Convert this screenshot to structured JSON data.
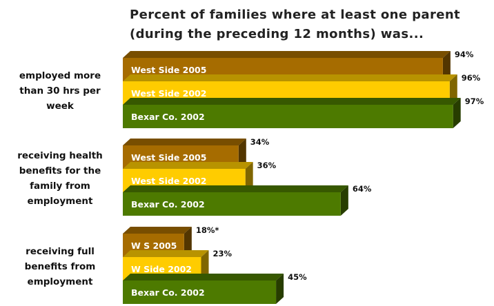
{
  "chart_data": {
    "type": "bar",
    "orientation": "horizontal",
    "style": "3d",
    "title_lines": [
      "Percent of families where at least one parent",
      "(during the preceding 12 months) was..."
    ],
    "xlim": [
      0,
      100
    ],
    "grid": false,
    "groups": [
      {
        "label_lines": [
          "employed more",
          "than 30 hrs per",
          "week"
        ],
        "bars": [
          {
            "label": "West Side 2005",
            "value": 94,
            "value_label": "94%",
            "color": "#A66C00"
          },
          {
            "label": "West Side 2002",
            "value": 96,
            "value_label": "96%",
            "color": "#FFCC00"
          },
          {
            "label": "Bexar Co. 2002",
            "value": 97,
            "value_label": "97%",
            "color": "#4D7A00"
          }
        ]
      },
      {
        "label_lines": [
          "receiving health",
          "benefits for the",
          "family from",
          "employment"
        ],
        "bars": [
          {
            "label": "West Side 2005",
            "value": 34,
            "value_label": "34%",
            "color": "#A66C00"
          },
          {
            "label": "West Side 2002",
            "value": 36,
            "value_label": "36%",
            "color": "#FFCC00"
          },
          {
            "label": "Bexar Co. 2002",
            "value": 64,
            "value_label": "64%",
            "color": "#4D7A00"
          }
        ]
      },
      {
        "label_lines": [
          "receiving full",
          "benefits from",
          "employment"
        ],
        "bars": [
          {
            "label": "W S 2005",
            "value": 18,
            "value_label": "18%*",
            "color": "#A66C00"
          },
          {
            "label": "W Side 2002",
            "value": 23,
            "value_label": "23%",
            "color": "#FFCC00"
          },
          {
            "label": "Bexar Co. 2002",
            "value": 45,
            "value_label": "45%",
            "color": "#4D7A00"
          }
        ]
      }
    ]
  }
}
